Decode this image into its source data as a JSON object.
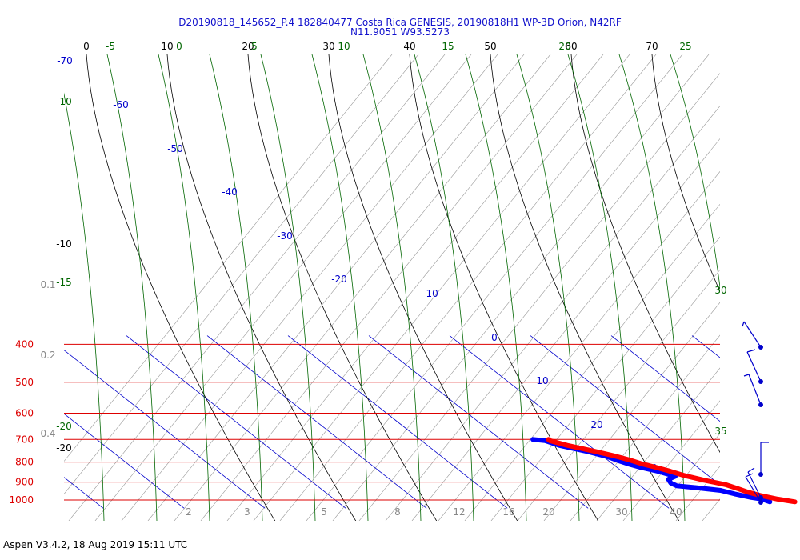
{
  "chart_data": {
    "type": "skew-t",
    "title": "D20190818_145652_P.4 182840477 Costa Rica GENESIS, 20190818H1 WP-3D Orion, N42RF",
    "subtitle": "N11.9051 W93.5273",
    "footer": "Aspen V3.4.2, 18 Aug 2019  15:11 UTC",
    "pressure_levels": [
      {
        "p": 400,
        "label": "400"
      },
      {
        "p": 500,
        "label": "500"
      },
      {
        "p": 600,
        "label": "600"
      },
      {
        "p": 700,
        "label": "700"
      },
      {
        "p": 800,
        "label": "800"
      },
      {
        "p": 900,
        "label": "900"
      },
      {
        "p": 1000,
        "label": "1000"
      }
    ],
    "top_temperature_labels": [
      "0",
      "10",
      "20",
      "30",
      "40",
      "50",
      "60",
      "70"
    ],
    "top_green_labels": [
      "-5",
      "0",
      "5",
      "10",
      "15",
      "20",
      "25"
    ],
    "isotherm_labels": [
      {
        "t": -70,
        "label": "-70"
      },
      {
        "t": -60,
        "label": "-60"
      },
      {
        "t": -50,
        "label": "-50"
      },
      {
        "t": -40,
        "label": "-40"
      },
      {
        "t": -30,
        "label": "-30"
      },
      {
        "t": -20,
        "label": "-20"
      },
      {
        "t": -10,
        "label": "-10"
      },
      {
        "t": 0,
        "label": "0"
      },
      {
        "t": 10,
        "label": "10"
      },
      {
        "t": 20,
        "label": "20"
      },
      {
        "t": 30,
        "label": "30"
      }
    ],
    "left_green_labels": [
      "-10",
      "-15",
      "-20"
    ],
    "left_black_labels": [
      "-10",
      "-20"
    ],
    "right_green_labels": [
      "30",
      "35"
    ],
    "mixing_ratio_height_labels": [
      "0.1",
      "0.2",
      "0.4"
    ],
    "mixing_ratio_bottom_labels": [
      "2",
      "3",
      "5",
      "8",
      "12",
      "16",
      "20",
      "30",
      "40"
    ],
    "temperature": {
      "name": "Temperature",
      "color": "#ff0000",
      "points": [
        {
          "p": 1011,
          "t": 26.6
        },
        {
          "p": 995,
          "t": 24.9
        },
        {
          "p": 975,
          "t": 23.4
        },
        {
          "p": 955,
          "t": 22.3
        },
        {
          "p": 935,
          "t": 21.6
        },
        {
          "p": 915,
          "t": 20.8
        },
        {
          "p": 890,
          "t": 18.8
        },
        {
          "p": 865,
          "t": 17.0
        },
        {
          "p": 845,
          "t": 16.0
        },
        {
          "p": 825,
          "t": 14.8
        },
        {
          "p": 808,
          "t": 13.6
        },
        {
          "p": 790,
          "t": 12.7
        },
        {
          "p": 770,
          "t": 11.4
        },
        {
          "p": 750,
          "t": 9.7
        },
        {
          "p": 725,
          "t": 7.3
        },
        {
          "p": 705,
          "t": 5.9
        },
        {
          "p": 700,
          "t": 5.9
        }
      ]
    },
    "dewpoint": {
      "name": "Dewpoint",
      "color": "#0000ff",
      "points": [
        {
          "p": 1011,
          "t": 23.5
        },
        {
          "p": 995,
          "t": 23.0
        },
        {
          "p": 985,
          "t": 21.9
        },
        {
          "p": 965,
          "t": 20.4
        },
        {
          "p": 945,
          "t": 19.2
        },
        {
          "p": 930,
          "t": 16.6
        },
        {
          "p": 920,
          "t": 14.5
        },
        {
          "p": 905,
          "t": 14.2
        },
        {
          "p": 885,
          "t": 14.5
        },
        {
          "p": 870,
          "t": 15.8
        },
        {
          "p": 845,
          "t": 14.5
        },
        {
          "p": 825,
          "t": 12.9
        },
        {
          "p": 808,
          "t": 11.9
        },
        {
          "p": 795,
          "t": 11.3
        },
        {
          "p": 775,
          "t": 10.5
        },
        {
          "p": 750,
          "t": 8.7
        },
        {
          "p": 725,
          "t": 6.3
        },
        {
          "p": 705,
          "t": 5.3
        },
        {
          "p": 700,
          "t": 4.0
        }
      ]
    },
    "colors": {
      "title": "#1010cc",
      "isobar": "#dd0000",
      "isotherm": "#0000cc",
      "dry_adiabat": "#000000",
      "moist_adiabat": "#006600",
      "mixing_ratio": "#999999",
      "wind_barb": "#0000cc"
    }
  }
}
